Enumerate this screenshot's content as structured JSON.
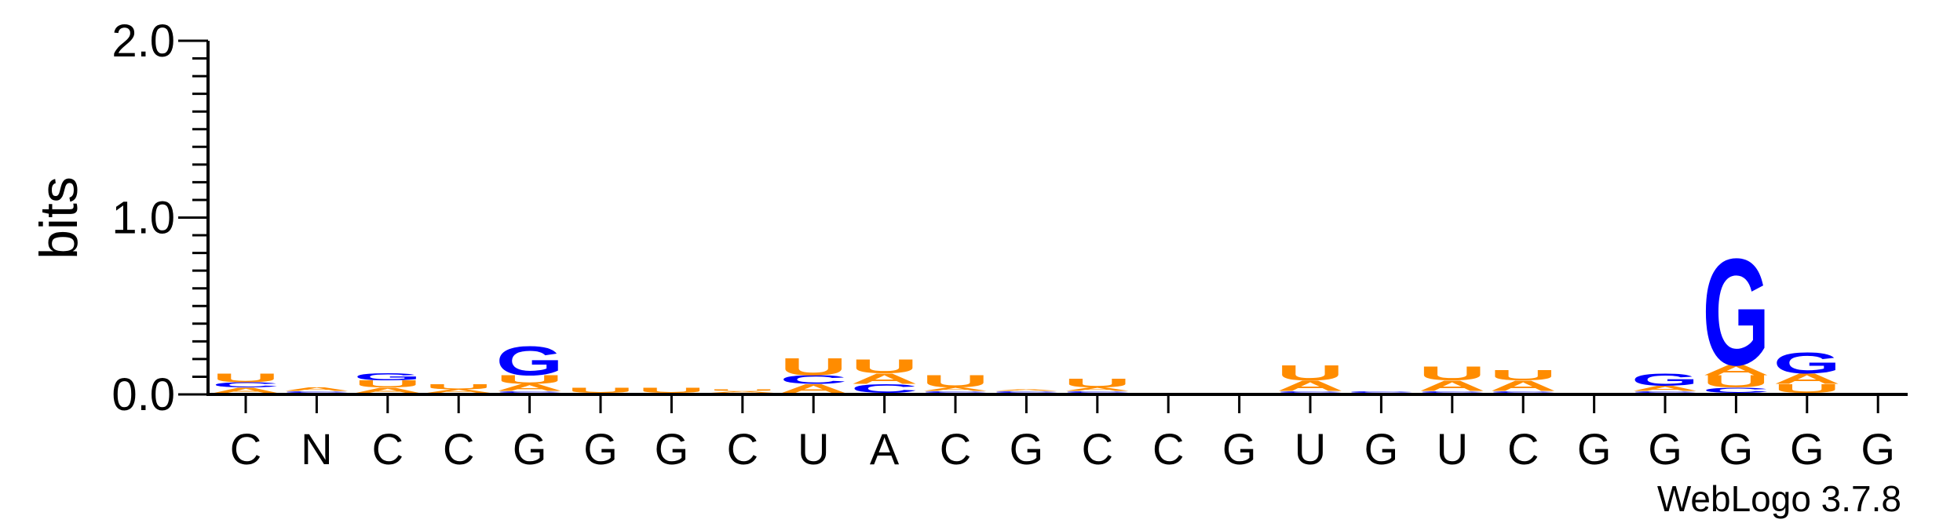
{
  "chart_data": {
    "type": "sequence-logo",
    "ylabel": "bits",
    "ylim": [
      0,
      2.0
    ],
    "yticks": [
      "0.0",
      "1.0",
      "2.0"
    ],
    "watermark": "WebLogo 3.7.8",
    "colors": {
      "G": "#0000ff",
      "C": "#0000ff",
      "U": "#ff8c00",
      "A": "#ff8c00"
    },
    "positions": [
      {
        "label": "C",
        "stack": [
          [
            "A",
            0.03
          ],
          [
            "C",
            0.03
          ],
          [
            "U",
            0.05
          ]
        ]
      },
      {
        "label": "N",
        "stack": [
          [
            "C",
            0.01
          ],
          [
            "A",
            0.02
          ]
        ]
      },
      {
        "label": "C",
        "stack": [
          [
            "A",
            0.03
          ],
          [
            "U",
            0.04
          ],
          [
            "G",
            0.04
          ]
        ]
      },
      {
        "label": "C",
        "stack": [
          [
            "A",
            0.02
          ],
          [
            "U",
            0.03
          ]
        ]
      },
      {
        "label": "G",
        "stack": [
          [
            "C",
            0.01
          ],
          [
            "A",
            0.04
          ],
          [
            "U",
            0.05
          ],
          [
            "G",
            0.17
          ]
        ]
      },
      {
        "label": "G",
        "stack": [
          [
            "U",
            0.03
          ]
        ]
      },
      {
        "label": "G",
        "stack": [
          [
            "U",
            0.03
          ]
        ]
      },
      {
        "label": "C",
        "stack": [
          [
            "A",
            0.01
          ],
          [
            "U",
            0.01
          ]
        ]
      },
      {
        "label": "U",
        "stack": [
          [
            "A",
            0.05
          ],
          [
            "C",
            0.05
          ],
          [
            "U",
            0.1
          ]
        ]
      },
      {
        "label": "A",
        "stack": [
          [
            "C",
            0.05
          ],
          [
            "A",
            0.06
          ],
          [
            "U",
            0.08
          ]
        ]
      },
      {
        "label": "C",
        "stack": [
          [
            "C",
            0.01
          ],
          [
            "A",
            0.02
          ],
          [
            "U",
            0.07
          ]
        ]
      },
      {
        "label": "G",
        "stack": [
          [
            "C",
            0.01
          ],
          [
            "A",
            0.01
          ]
        ]
      },
      {
        "label": "C",
        "stack": [
          [
            "C",
            0.01
          ],
          [
            "A",
            0.02
          ],
          [
            "U",
            0.05
          ]
        ]
      },
      {
        "label": "C",
        "stack": []
      },
      {
        "label": "G",
        "stack": []
      },
      {
        "label": "U",
        "stack": [
          [
            "C",
            0.01
          ],
          [
            "A",
            0.06
          ],
          [
            "U",
            0.09
          ]
        ]
      },
      {
        "label": "G",
        "stack": [
          [
            "C",
            0.01
          ]
        ]
      },
      {
        "label": "U",
        "stack": [
          [
            "C",
            0.01
          ],
          [
            "A",
            0.06
          ],
          [
            "U",
            0.08
          ]
        ]
      },
      {
        "label": "C",
        "stack": [
          [
            "C",
            0.01
          ],
          [
            "A",
            0.06
          ],
          [
            "U",
            0.06
          ]
        ]
      },
      {
        "label": "G",
        "stack": []
      },
      {
        "label": "G",
        "stack": [
          [
            "C",
            0.01
          ],
          [
            "A",
            0.03
          ],
          [
            "G",
            0.07
          ]
        ]
      },
      {
        "label": "G",
        "stack": [
          [
            "C",
            0.03
          ],
          [
            "U",
            0.07
          ],
          [
            "A",
            0.06
          ],
          [
            "G",
            0.62
          ]
        ]
      },
      {
        "label": "G",
        "stack": [
          [
            "U",
            0.05
          ],
          [
            "A",
            0.06
          ],
          [
            "G",
            0.12
          ]
        ]
      },
      {
        "label": "G",
        "stack": []
      }
    ]
  }
}
